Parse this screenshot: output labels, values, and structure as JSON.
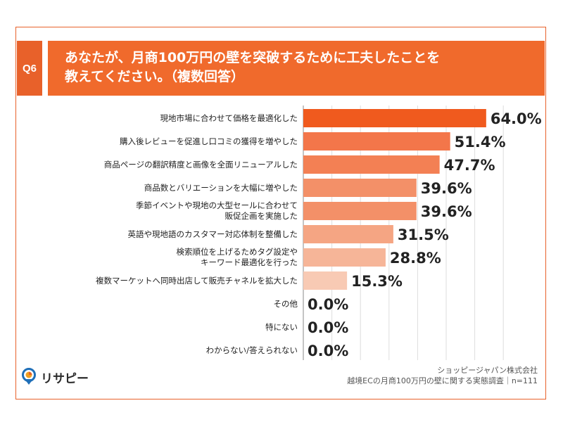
{
  "question": {
    "badge": "Q6",
    "line1": "あなたが、月商100万円の壁を突破するために工夫したことを",
    "line2": "教えてください。（複数回答）"
  },
  "footer": {
    "company": "ショッピージャパン株式会社",
    "survey": "越境ECの月商100万円の壁に関する実態調査｜n=111"
  },
  "logo": {
    "text": "リサピー",
    "icon": "lightbulb-pin-icon"
  },
  "colors": {
    "accent": "#e8612a",
    "bars": [
      "#f05a1e",
      "#f3764a",
      "#f38054",
      "#f39068",
      "#f39068",
      "#f5a583",
      "#f6b598",
      "#f8cab4"
    ]
  },
  "chart_data": {
    "type": "bar",
    "orientation": "horizontal",
    "categories": [
      [
        "現地市場に合わせて価格を最適化した"
      ],
      [
        "購入後レビューを促進し口コミの獲得を増やした"
      ],
      [
        "商品ページの翻訳精度と画像を全面リニューアルした"
      ],
      [
        "商品数とバリエーションを大幅に増やした"
      ],
      [
        "季節イベントや現地の大型セールに合わせて",
        "販促企画を実施した"
      ],
      [
        "英語や現地語のカスタマー対応体制を整備した"
      ],
      [
        "検索順位を上げるためタグ設定や",
        "キーワード最適化を行った"
      ],
      [
        "複数マーケットへ同時出店して販売チャネルを拡大した"
      ],
      [
        "その他"
      ],
      [
        "特にない"
      ],
      [
        "わからない/答えられない"
      ]
    ],
    "values": [
      64.0,
      51.4,
      47.7,
      39.6,
      39.6,
      31.5,
      28.8,
      15.3,
      0.0,
      0.0,
      0.0
    ],
    "value_labels": [
      "64.0%",
      "51.4%",
      "47.7%",
      "39.6%",
      "39.6%",
      "31.5%",
      "28.8%",
      "15.3%",
      "0.0%",
      "0.0%",
      "0.0%"
    ],
    "xlim": [
      0,
      100
    ],
    "grid": true
  }
}
